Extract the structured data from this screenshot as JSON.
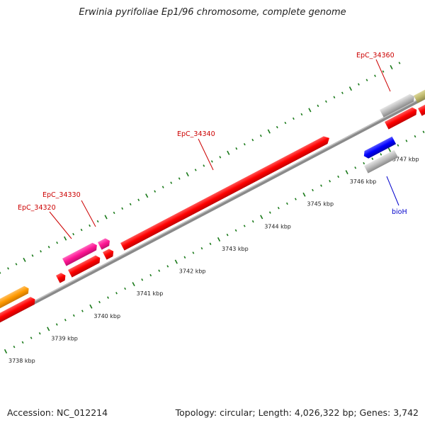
{
  "title": "Erwinia pyrifoliae Ep1/96 chromosome, complete genome",
  "footer": {
    "accession": "Accession: NC_012214",
    "summary": "Topology: circular; Length: 4,026,322 bp; Genes: 3,742"
  },
  "scale": {
    "labels": [
      "3738 kbp",
      "3739 kbp",
      "3740 kbp",
      "3741 kbp",
      "3742 kbp",
      "3743 kbp",
      "3744 kbp",
      "3745 kbp",
      "3746 kbp",
      "3747 kbp"
    ]
  },
  "genes": [
    {
      "id": "orange-forward",
      "color": "#ff9900",
      "strand": "forward"
    },
    {
      "id": "red-reverse-left",
      "color": "#ff0000",
      "strand": "reverse"
    },
    {
      "id": "EpC_34320",
      "color": "#ff1493",
      "strand": "forward"
    },
    {
      "id": "EpC_34330",
      "color": "#ff1493",
      "strand": "forward"
    },
    {
      "id": "EpC_34340",
      "color": "#ff0000",
      "strand": "forward"
    },
    {
      "id": "EpC_34360",
      "color": "#bbbbbb",
      "strand": "forward"
    },
    {
      "id": "bioH",
      "color": "#0000ff",
      "strand": "reverse"
    }
  ],
  "labels": [
    {
      "text": "EpC_34320",
      "color": "#cc0000"
    },
    {
      "text": "EpC_34330",
      "color": "#cc0000"
    },
    {
      "text": "EpC_34340",
      "color": "#cc0000"
    },
    {
      "text": "EpC_34360",
      "color": "#cc0000"
    },
    {
      "text": "bioH",
      "color": "#0000cc"
    }
  ]
}
